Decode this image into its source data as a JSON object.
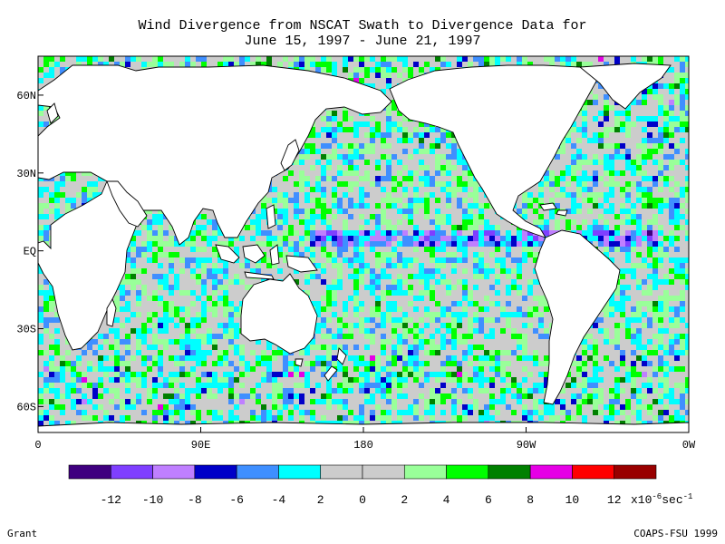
{
  "title": {
    "line1": "Wind Divergence from NSCAT Swath to Divergence Data for",
    "line2": "June 15, 1997 - June 21, 1997"
  },
  "chart_data": {
    "type": "heatmap",
    "projection": "cylindrical equidistant",
    "lon_range": [
      0,
      360
    ],
    "lat_range": [
      -70,
      75
    ],
    "x_tick_labels": [
      "0",
      "90E",
      "180",
      "90W",
      "0W"
    ],
    "y_tick_labels": [
      "60N",
      "30N",
      "EQ",
      "30S",
      "60S"
    ],
    "x_ticks_deg": [
      0,
      90,
      180,
      270,
      360
    ],
    "y_ticks_deg": [
      60,
      30,
      0,
      -30,
      -60
    ],
    "colorbar": {
      "tick_labels": [
        "-12",
        "-10",
        "-8",
        "-6",
        "-4",
        "2",
        "0",
        "2",
        "4",
        "6",
        "8",
        "10",
        "12"
      ],
      "unit_base": "x10",
      "unit_exp": "-6",
      "unit_suffix": "sec",
      "unit_suffix_exp": "-1",
      "colors": [
        "#3f007f",
        "#7f3fff",
        "#bf7fff",
        "#0000c8",
        "#3f8fff",
        "#00ffff",
        "#cccccc",
        "#cccccc",
        "#99ff99",
        "#00ff00",
        "#008000",
        "#e600e6",
        "#ff0000",
        "#990000"
      ]
    }
  },
  "credits": {
    "left": "Grant",
    "right": "COAPS-FSU 1999"
  }
}
